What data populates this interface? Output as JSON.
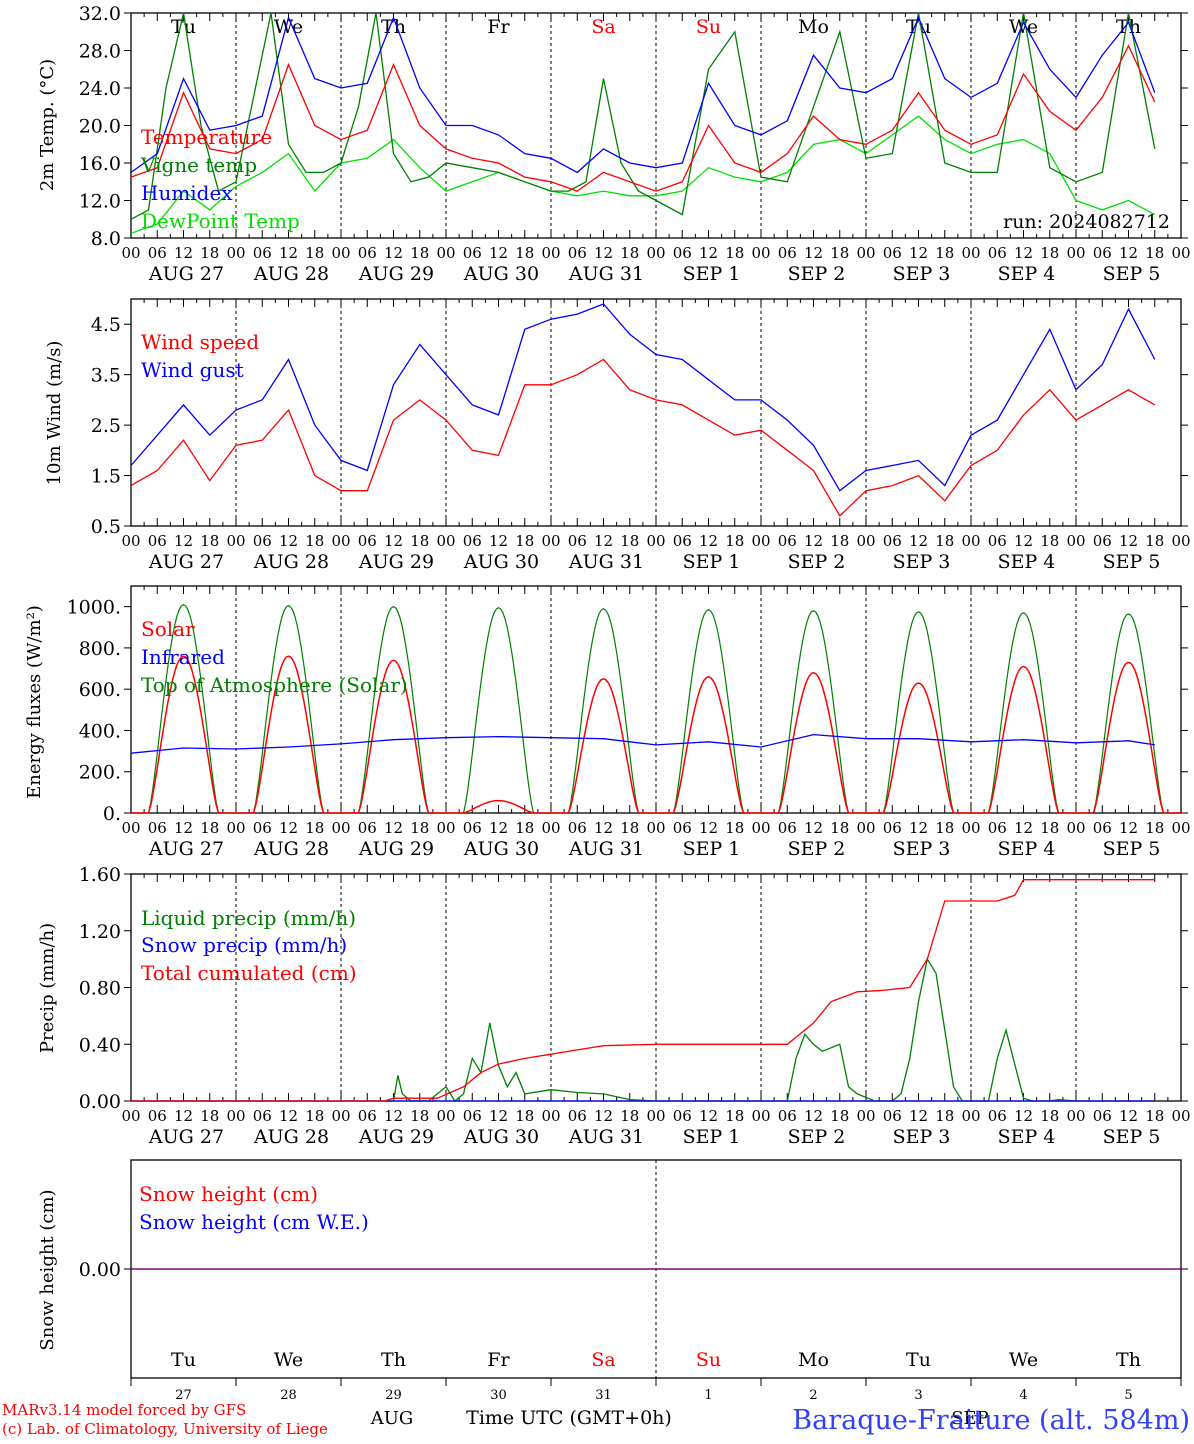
{
  "meta": {
    "model": "MARv3.14 model forced by GFS",
    "credit": "(c) Lab. of Climatology, University of Liege",
    "station": "Baraque-Fraiture (alt. 584m)",
    "run": "run: 2024082712",
    "time_axis": "Time UTC (GMT+0h)",
    "month_aug": "AUG",
    "month_sep": "SEP"
  },
  "days": [
    "Tu",
    "We",
    "Th",
    "Fr",
    "Sa",
    "Su",
    "Mo",
    "Tu",
    "We",
    "Th"
  ],
  "weekend_days": [
    4,
    5
  ],
  "day_dates": [
    "AUG 27",
    "AUG 28",
    "AUG 29",
    "AUG 30",
    "AUG 31",
    "SEP  1",
    "SEP  2",
    "SEP  3",
    "SEP  4",
    "SEP  5"
  ],
  "day_numbers": [
    "27",
    "28",
    "29",
    "30",
    "31",
    "1",
    "2",
    "3",
    "4",
    "5"
  ],
  "hour_labels": [
    "00",
    "06",
    "12",
    "18"
  ],
  "hour_label_end": "00",
  "colors": {
    "red": "#ff0000",
    "green": "#008000",
    "blue": "#0000ff",
    "lightgreen": "#00e000",
    "purple": "#800080"
  },
  "chart_data": [
    {
      "type": "line",
      "ylabel": "2m Temp. (°C)",
      "ylim": [
        8,
        32
      ],
      "yticks": [
        "8.0",
        "12.0",
        "16.0",
        "20.0",
        "24.0",
        "28.0",
        "32.0"
      ],
      "x_unit": "hours since 27 Aug 00 UTC",
      "series": [
        {
          "name": "Temperature",
          "color": "#ff0000",
          "x": [
            0,
            6,
            12,
            18,
            24,
            30,
            36,
            42,
            48,
            54,
            60,
            66,
            72,
            78,
            84,
            90,
            96,
            102,
            108,
            114,
            120,
            126,
            132,
            138,
            144,
            150,
            156,
            162,
            168,
            174,
            180,
            186,
            192,
            198,
            204,
            210,
            216,
            222,
            228,
            234
          ],
          "values": [
            14.5,
            15.5,
            23.5,
            17.5,
            17.0,
            18.5,
            26.5,
            20.0,
            18.5,
            19.5,
            26.5,
            20.0,
            17.5,
            16.5,
            16.0,
            14.5,
            14.0,
            13.0,
            15.0,
            14.0,
            13.0,
            14.0,
            20.0,
            16.0,
            15.0,
            17.0,
            21.0,
            18.5,
            18.0,
            19.5,
            23.5,
            19.5,
            18.0,
            19.0,
            25.5,
            21.5,
            19.5,
            23.0,
            28.5,
            22.5
          ]
        },
        {
          "name": "Vigne temp",
          "color": "#008000",
          "x": [
            0,
            4,
            8,
            12,
            16,
            20,
            24,
            28,
            32,
            36,
            40,
            44,
            48,
            52,
            56,
            60,
            64,
            68,
            72,
            78,
            84,
            90,
            96,
            100,
            104,
            108,
            112,
            116,
            120,
            126,
            132,
            138,
            144,
            150,
            156,
            162,
            168,
            174,
            180,
            186,
            192,
            198,
            204,
            210,
            216,
            222,
            228,
            234
          ],
          "values": [
            10.0,
            11.0,
            24.0,
            32.0,
            20.0,
            13.0,
            14.0,
            23.0,
            32.0,
            18.0,
            15.0,
            15.0,
            16.0,
            22.0,
            32.0,
            17.0,
            14.0,
            14.5,
            16.0,
            15.5,
            15.0,
            14.0,
            13.0,
            13.0,
            14.0,
            25.0,
            16.0,
            13.0,
            12.0,
            10.5,
            26.0,
            30.0,
            14.5,
            14.0,
            22.0,
            30.0,
            16.5,
            17.0,
            32.0,
            16.0,
            15.0,
            15.0,
            32.0,
            15.5,
            14.0,
            15.0,
            32.0,
            17.5
          ]
        },
        {
          "name": "Humidex",
          "color": "#0000ff",
          "x": [
            0,
            6,
            12,
            18,
            24,
            30,
            36,
            42,
            48,
            54,
            60,
            66,
            72,
            78,
            84,
            90,
            96,
            102,
            108,
            114,
            120,
            126,
            132,
            138,
            144,
            150,
            156,
            162,
            168,
            174,
            180,
            186,
            192,
            198,
            204,
            210,
            216,
            222,
            228,
            234
          ],
          "values": [
            15.0,
            17.0,
            25.0,
            19.5,
            20.0,
            21.0,
            31.5,
            25.0,
            24.0,
            24.5,
            31.5,
            24.0,
            20.0,
            20.0,
            19.0,
            17.0,
            16.5,
            15.0,
            17.5,
            16.0,
            15.5,
            16.0,
            24.5,
            20.0,
            19.0,
            20.5,
            27.5,
            24.0,
            23.5,
            25.0,
            31.5,
            25.0,
            23.0,
            24.5,
            31.0,
            26.0,
            23.0,
            27.5,
            31.0,
            23.5
          ]
        },
        {
          "name": "DewPoint Temp",
          "color": "#00e000",
          "x": [
            0,
            6,
            12,
            18,
            24,
            30,
            36,
            42,
            48,
            54,
            60,
            66,
            72,
            78,
            84,
            90,
            96,
            102,
            108,
            114,
            120,
            126,
            132,
            138,
            144,
            150,
            156,
            162,
            168,
            174,
            180,
            186,
            192,
            198,
            204,
            210,
            216,
            222,
            228,
            234
          ],
          "values": [
            8.5,
            9.5,
            13.0,
            11.0,
            13.5,
            15.0,
            17.0,
            13.0,
            16.0,
            16.5,
            18.5,
            15.5,
            13.0,
            14.0,
            15.0,
            14.0,
            13.0,
            12.5,
            13.0,
            12.5,
            12.5,
            13.0,
            15.5,
            14.5,
            14.0,
            15.0,
            18.0,
            18.5,
            17.0,
            19.0,
            21.0,
            18.5,
            17.0,
            18.0,
            18.5,
            17.0,
            12.0,
            11.0,
            12.0,
            10.5
          ]
        }
      ]
    },
    {
      "type": "line",
      "ylabel": "10m Wind (m/s)",
      "ylim": [
        0.5,
        5
      ],
      "yticks": [
        "0.5",
        "1.5",
        "2.5",
        "3.5",
        "4.5"
      ],
      "series": [
        {
          "name": "Wind speed",
          "color": "#ff0000",
          "x": [
            0,
            6,
            12,
            18,
            24,
            30,
            36,
            42,
            48,
            54,
            60,
            66,
            72,
            78,
            84,
            90,
            96,
            102,
            108,
            114,
            120,
            126,
            132,
            138,
            144,
            150,
            156,
            162,
            168,
            174,
            180,
            186,
            192,
            198,
            204,
            210,
            216,
            222,
            228,
            234
          ],
          "values": [
            1.3,
            1.6,
            2.2,
            1.4,
            2.1,
            2.2,
            2.8,
            1.5,
            1.2,
            1.2,
            2.6,
            3.0,
            2.6,
            2.0,
            1.9,
            3.3,
            3.3,
            3.5,
            3.8,
            3.2,
            3.0,
            2.9,
            2.6,
            2.3,
            2.4,
            2.0,
            1.6,
            0.7,
            1.2,
            1.3,
            1.5,
            1.0,
            1.7,
            2.0,
            2.7,
            3.2,
            2.6,
            2.9,
            3.2,
            2.9
          ]
        },
        {
          "name": "Wind gust",
          "color": "#0000ff",
          "x": [
            0,
            6,
            12,
            18,
            24,
            30,
            36,
            42,
            48,
            54,
            60,
            66,
            72,
            78,
            84,
            90,
            96,
            102,
            108,
            114,
            120,
            126,
            132,
            138,
            144,
            150,
            156,
            162,
            168,
            174,
            180,
            186,
            192,
            198,
            204,
            210,
            216,
            222,
            228,
            234
          ],
          "values": [
            1.7,
            2.3,
            2.9,
            2.3,
            2.8,
            3.0,
            3.8,
            2.5,
            1.8,
            1.6,
            3.3,
            4.1,
            3.5,
            2.9,
            2.7,
            4.4,
            4.6,
            4.7,
            4.9,
            4.3,
            3.9,
            3.8,
            3.4,
            3.0,
            3.0,
            2.6,
            2.1,
            1.2,
            1.6,
            1.7,
            1.8,
            1.3,
            2.3,
            2.6,
            3.5,
            4.4,
            3.2,
            3.7,
            4.8,
            3.8
          ]
        }
      ]
    },
    {
      "type": "line",
      "ylabel": "Energy fluxes (W/m²)",
      "ylim": [
        0,
        1100
      ],
      "yticks": [
        "0.",
        "200.",
        "400.",
        "600.",
        "800.",
        "1000."
      ],
      "series": [
        {
          "name": "Solar",
          "color": "#ff0000",
          "daily_peak": [
            760,
            760,
            740,
            60,
            650,
            660,
            680,
            630,
            710,
            730
          ]
        },
        {
          "name": "Infrared",
          "color": "#0000ff",
          "x": [
            0,
            12,
            24,
            36,
            48,
            60,
            72,
            84,
            96,
            108,
            120,
            132,
            144,
            156,
            168,
            180,
            192,
            204,
            216,
            228,
            234
          ],
          "values": [
            290,
            315,
            310,
            320,
            335,
            355,
            365,
            370,
            365,
            360,
            330,
            345,
            320,
            380,
            360,
            360,
            345,
            355,
            340,
            350,
            330
          ]
        },
        {
          "name": "Top of Atmosphere (Solar)",
          "color": "#008000",
          "daily_peak": [
            1010,
            1005,
            1000,
            995,
            990,
            985,
            980,
            975,
            970,
            965
          ]
        }
      ]
    },
    {
      "type": "line",
      "ylabel": "Precip (mm/h)",
      "ylim": [
        0,
        1.6
      ],
      "yticks": [
        "0.00",
        "0.40",
        "0.80",
        "1.20",
        "1.60"
      ],
      "series": [
        {
          "name": "Liquid precip (mm/h)",
          "color": "#008000",
          "x": [
            0,
            60,
            61,
            62,
            64,
            66,
            68,
            72,
            74,
            76,
            78,
            80,
            82,
            84,
            86,
            88,
            90,
            96,
            102,
            108,
            114,
            120,
            150,
            152,
            154,
            156,
            158,
            162,
            164,
            166,
            170,
            174,
            176,
            178,
            180,
            182,
            184,
            186,
            188,
            190,
            192,
            196,
            198,
            200,
            204,
            206,
            210,
            212,
            216,
            234
          ],
          "values": [
            0,
            0,
            0.18,
            0.05,
            0,
            0,
            0,
            0.1,
            0,
            0.05,
            0.3,
            0.2,
            0.55,
            0.25,
            0.1,
            0.2,
            0.05,
            0.08,
            0.06,
            0.05,
            0.01,
            0,
            0,
            0.3,
            0.47,
            0.4,
            0.35,
            0.4,
            0.1,
            0.05,
            0,
            0,
            0.05,
            0.3,
            0.7,
            1.0,
            0.9,
            0.5,
            0.1,
            0,
            0,
            0,
            0.3,
            0.5,
            0.02,
            0,
            0,
            0.01,
            0,
            0
          ]
        },
        {
          "name": "Snow precip (mm/h)",
          "color": "#0000ff",
          "x": [
            0,
            234
          ],
          "values": [
            0,
            0
          ]
        },
        {
          "name": "Total cumulated (cm)",
          "color": "#ff0000",
          "x": [
            0,
            58,
            60,
            70,
            76,
            80,
            84,
            90,
            96,
            102,
            108,
            120,
            144,
            150,
            156,
            160,
            166,
            172,
            178,
            182,
            186,
            192,
            198,
            202,
            204,
            234
          ],
          "values": [
            0,
            0,
            0.02,
            0.02,
            0.1,
            0.2,
            0.26,
            0.3,
            0.33,
            0.36,
            0.39,
            0.4,
            0.4,
            0.4,
            0.55,
            0.7,
            0.77,
            0.78,
            0.8,
            1.0,
            1.41,
            1.41,
            1.41,
            1.45,
            1.56,
            1.56
          ]
        }
      ]
    },
    {
      "type": "line",
      "ylabel": "Snow height (cm)",
      "yticks": [
        "0.00"
      ],
      "series": [
        {
          "name": "Snow height (cm)",
          "color": "#ff0000",
          "x": [
            0,
            240
          ],
          "values": [
            0,
            0
          ]
        },
        {
          "name": "Snow height (cm W.E.)",
          "color": "#0000ff",
          "x": [
            0,
            240
          ],
          "values": [
            0,
            0
          ]
        }
      ]
    }
  ]
}
